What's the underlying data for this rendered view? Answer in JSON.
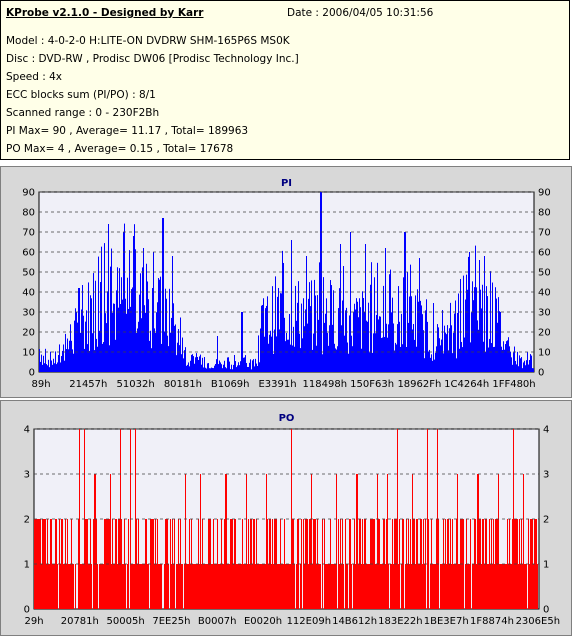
{
  "info": {
    "title": "KProbe v2.1.0 - Designed by Karr",
    "date": "Date : 2006/04/05 10:31:56",
    "model": "Model : 4-0-2-0 H:LITE-ON DVDRW SHM-165P6S MS0K",
    "disc": "Disc : DVD-RW , Prodisc DW06 [Prodisc Technology Inc.]",
    "speed": "Speed : 4x",
    "ecc": "ECC blocks sum (PI/PO) : 8/1",
    "range": "Scanned range : 0 - 230F2Bh",
    "pi": "PI Max= 90 , Average= 11.17 , Total= 189963",
    "po": "PO Max= 4 , Average= 0.15 , Total= 17678"
  },
  "chart_data": [
    {
      "type": "bar",
      "title": "PI",
      "color": "#0000ff",
      "ylim": [
        0,
        90
      ],
      "yticks": [
        "0",
        "10",
        "20",
        "30",
        "40",
        "50",
        "60",
        "70",
        "80",
        "90"
      ],
      "xticks": [
        "89h",
        "21457h",
        "51032h",
        "80181h",
        "B1069h",
        "E3391h",
        "118498h",
        "150F63h",
        "18962Fh",
        "1C4264h",
        "1FF480h"
      ],
      "grid": true,
      "profile": [
        [
          0,
          15
        ],
        [
          0.01,
          8
        ],
        [
          0.04,
          8
        ],
        [
          0.06,
          20
        ],
        [
          0.08,
          28
        ],
        [
          0.1,
          38
        ],
        [
          0.12,
          42
        ],
        [
          0.14,
          40
        ],
        [
          0.16,
          44
        ],
        [
          0.19,
          44
        ],
        [
          0.22,
          44
        ],
        [
          0.25,
          35
        ],
        [
          0.27,
          32
        ],
        [
          0.28,
          22
        ],
        [
          0.29,
          12
        ],
        [
          0.3,
          6
        ],
        [
          0.4,
          5
        ],
        [
          0.44,
          5
        ],
        [
          0.45,
          28
        ],
        [
          0.48,
          38
        ],
        [
          0.52,
          38
        ],
        [
          0.56,
          35
        ],
        [
          0.6,
          35
        ],
        [
          0.64,
          32
        ],
        [
          0.68,
          35
        ],
        [
          0.72,
          30
        ],
        [
          0.76,
          33
        ],
        [
          0.79,
          22
        ],
        [
          0.82,
          18
        ],
        [
          0.85,
          28
        ],
        [
          0.88,
          40
        ],
        [
          0.91,
          38
        ],
        [
          0.93,
          30
        ],
        [
          0.95,
          10
        ],
        [
          1.0,
          5
        ]
      ],
      "peaks": [
        [
          0.14,
          74
        ],
        [
          0.12,
          55
        ],
        [
          0.17,
          70
        ],
        [
          0.19,
          68
        ],
        [
          0.21,
          62
        ],
        [
          0.25,
          77
        ],
        [
          0.27,
          58
        ],
        [
          0.23,
          60
        ],
        [
          0.51,
          66
        ],
        [
          0.54,
          58
        ],
        [
          0.57,
          90
        ],
        [
          0.61,
          64
        ],
        [
          0.63,
          70
        ],
        [
          0.66,
          64
        ],
        [
          0.7,
          62
        ],
        [
          0.74,
          70
        ],
        [
          0.77,
          57
        ],
        [
          0.87,
          60
        ],
        [
          0.89,
          56
        ],
        [
          0.9,
          58
        ],
        [
          0.08,
          42
        ],
        [
          0.41,
          30
        ],
        [
          0.36,
          18
        ],
        [
          0.46,
          20
        ]
      ]
    },
    {
      "type": "bar",
      "title": "PO",
      "color": "#ff0000",
      "ylim": [
        0,
        4
      ],
      "yticks": [
        "0",
        "1",
        "2",
        "3",
        "4"
      ],
      "xticks": [
        "29h",
        "20781h",
        "50005h",
        "7EE25h",
        "B0007h",
        "E0020h",
        "112E09h",
        "14B612h",
        "183E22h",
        "1BE3E7h",
        "1F8874h",
        "2306E5h"
      ],
      "grid": true,
      "profile": [
        [
          0,
          1
        ],
        [
          1,
          1
        ]
      ],
      "peaks": [
        [
          0.09,
          4
        ],
        [
          0.1,
          4
        ],
        [
          0.17,
          4
        ],
        [
          0.19,
          4
        ],
        [
          0.2,
          4
        ],
        [
          0.51,
          4
        ],
        [
          0.72,
          4
        ],
        [
          0.78,
          4
        ],
        [
          0.8,
          4
        ],
        [
          0.95,
          4
        ],
        [
          0.12,
          3
        ],
        [
          0.15,
          3
        ],
        [
          0.3,
          3
        ],
        [
          0.33,
          3
        ],
        [
          0.38,
          3
        ],
        [
          0.42,
          3
        ],
        [
          0.46,
          3
        ],
        [
          0.55,
          3
        ],
        [
          0.6,
          3
        ],
        [
          0.64,
          3
        ],
        [
          0.68,
          3
        ],
        [
          0.7,
          3
        ],
        [
          0.75,
          3
        ],
        [
          0.84,
          3
        ],
        [
          0.88,
          3
        ],
        [
          0.92,
          3
        ],
        [
          0.97,
          3
        ]
      ]
    }
  ]
}
